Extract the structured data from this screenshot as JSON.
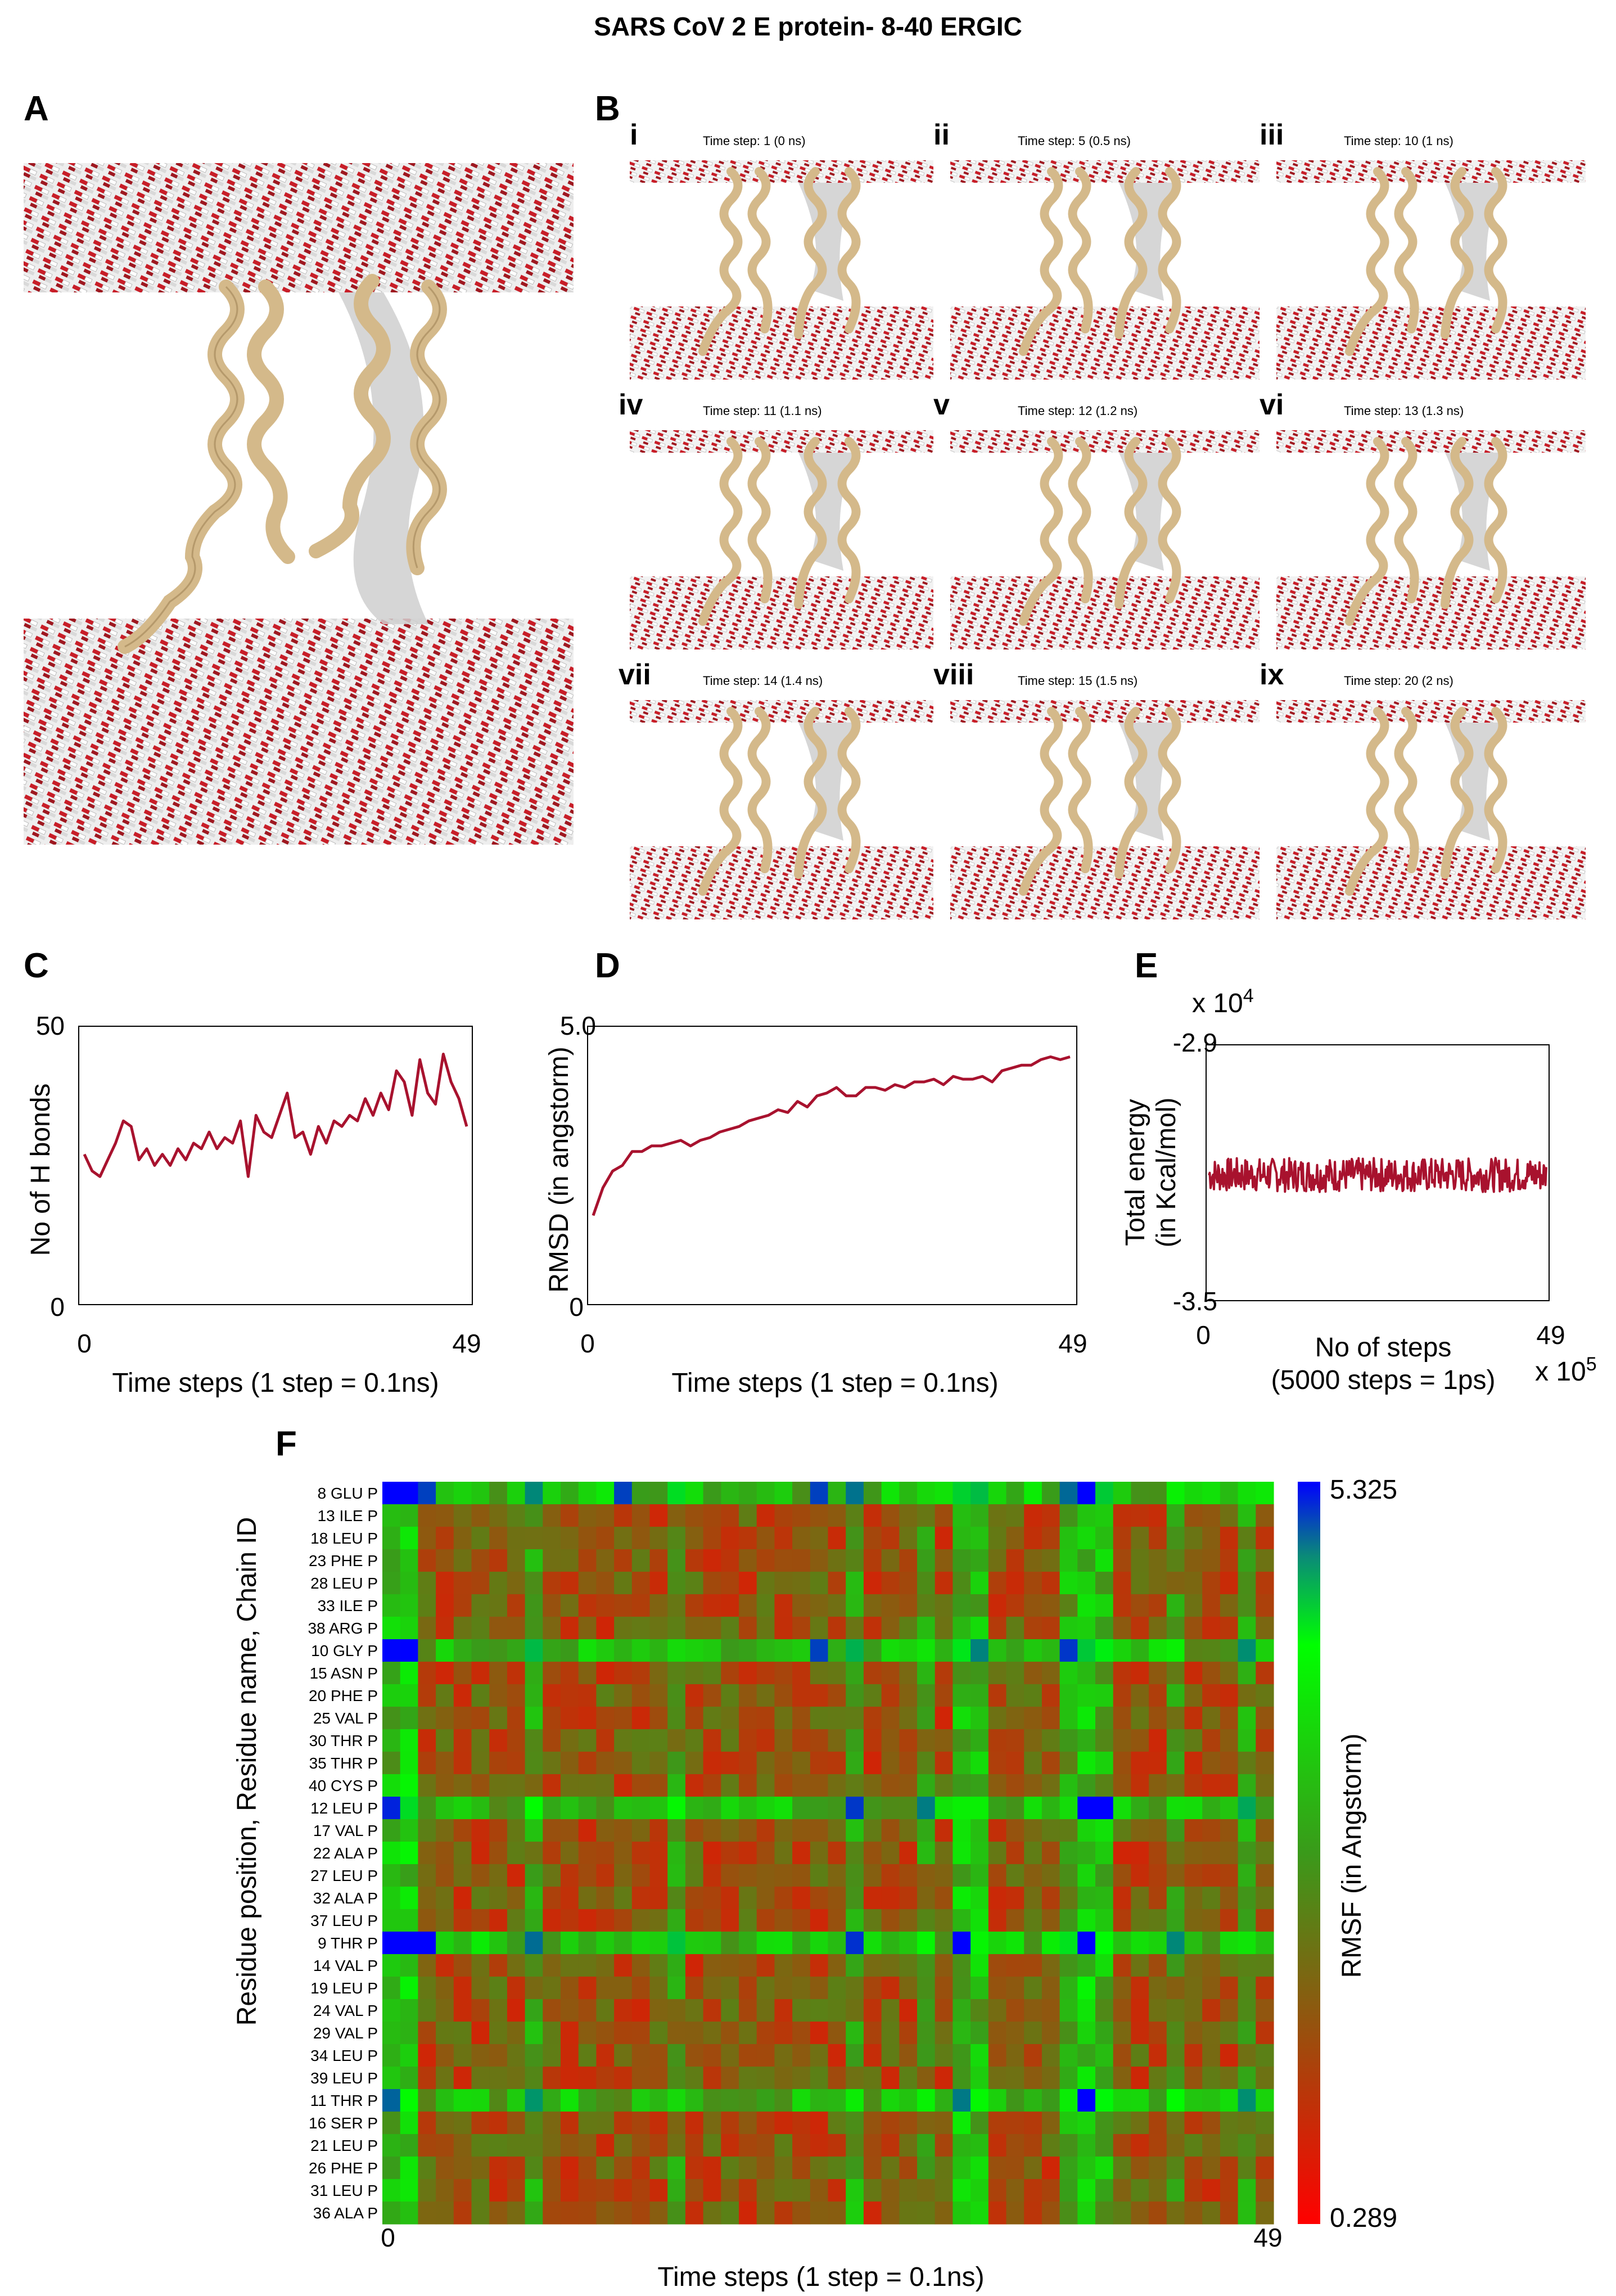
{
  "figure_title": "SARS CoV 2 E protein- 8-40 ERGIC",
  "panel_labels": {
    "A": "A",
    "B": "B",
    "C": "C",
    "D": "D",
    "E": "E",
    "F": "F"
  },
  "snapshots": [
    {
      "roman": "i",
      "caption": "Time step: 1 (0 ns)"
    },
    {
      "roman": "ii",
      "caption": "Time step: 5 (0.5 ns)"
    },
    {
      "roman": "iii",
      "caption": "Time step: 10 (1 ns)"
    },
    {
      "roman": "iv",
      "caption": "Time step: 11 (1.1 ns)"
    },
    {
      "roman": "v",
      "caption": "Time step: 12 (1.2 ns)"
    },
    {
      "roman": "vi",
      "caption": "Time step: 13 (1.3 ns)"
    },
    {
      "roman": "vii",
      "caption": "Time step: 14 (1.4 ns)"
    },
    {
      "roman": "viii",
      "caption": "Time step: 15 (1.5 ns)"
    },
    {
      "roman": "ix",
      "caption": "Time step: 20 (2 ns)"
    }
  ],
  "colors": {
    "line": "#a8122e",
    "water_red": "#c81e28",
    "helix": "#d4b98a",
    "surface": "#c8c8c8"
  },
  "chart_data": [
    {
      "panel": "C",
      "type": "line",
      "xlabel": "Time steps (1 step = 0.1ns)",
      "ylabel": "No of H bonds",
      "xlim": [
        0,
        49
      ],
      "ylim": [
        0,
        50
      ],
      "xticks": [
        "0",
        "49"
      ],
      "yticks": [
        "0",
        "50"
      ],
      "x": [
        0,
        1,
        2,
        3,
        4,
        5,
        6,
        7,
        8,
        9,
        10,
        11,
        12,
        13,
        14,
        15,
        16,
        17,
        18,
        19,
        20,
        21,
        22,
        23,
        24,
        25,
        26,
        27,
        28,
        29,
        30,
        31,
        32,
        33,
        34,
        35,
        36,
        37,
        38,
        39,
        40,
        41,
        42,
        43,
        44,
        45,
        46,
        47,
        48,
        49
      ],
      "values": [
        27,
        24,
        23,
        26,
        29,
        33,
        32,
        26,
        28,
        25,
        27,
        25,
        28,
        26,
        29,
        28,
        31,
        28,
        30,
        29,
        33,
        23,
        34,
        31,
        30,
        34,
        38,
        30,
        31,
        27,
        32,
        29,
        33,
        32,
        34,
        33,
        37,
        34,
        38,
        35,
        42,
        40,
        34,
        44,
        38,
        36,
        45,
        40,
        37,
        32
      ]
    },
    {
      "panel": "D",
      "type": "line",
      "xlabel": "Time steps (1 step = 0.1ns)",
      "ylabel": "RMSD (in angstorm)",
      "xlim": [
        0,
        49
      ],
      "ylim": [
        0,
        5
      ],
      "xticks": [
        "0",
        "49"
      ],
      "yticks": [
        "0",
        "5.0"
      ],
      "x": [
        0,
        1,
        2,
        3,
        4,
        5,
        6,
        7,
        8,
        9,
        10,
        11,
        12,
        13,
        14,
        15,
        16,
        17,
        18,
        19,
        20,
        21,
        22,
        23,
        24,
        25,
        26,
        27,
        28,
        29,
        30,
        31,
        32,
        33,
        34,
        35,
        36,
        37,
        38,
        39,
        40,
        41,
        42,
        43,
        44,
        45,
        46,
        47,
        48,
        49
      ],
      "values": [
        1.6,
        2.1,
        2.4,
        2.5,
        2.75,
        2.75,
        2.85,
        2.85,
        2.9,
        2.95,
        2.85,
        2.95,
        3.0,
        3.1,
        3.15,
        3.2,
        3.3,
        3.35,
        3.4,
        3.5,
        3.45,
        3.65,
        3.55,
        3.75,
        3.8,
        3.9,
        3.75,
        3.75,
        3.9,
        3.9,
        3.85,
        3.95,
        3.9,
        4.0,
        4.0,
        4.05,
        3.95,
        4.1,
        4.05,
        4.05,
        4.1,
        4.0,
        4.2,
        4.25,
        4.3,
        4.3,
        4.4,
        4.45,
        4.4,
        4.45
      ]
    },
    {
      "panel": "E",
      "type": "line",
      "xlabel_lines": [
        "No of steps",
        "(5000 steps = 1ps)"
      ],
      "ylabel_lines": [
        "Total energy",
        "(in Kcal/mol)"
      ],
      "xlim": [
        0,
        49
      ],
      "ylim": [
        -3.5,
        -2.9
      ],
      "xticks": [
        "0",
        "49"
      ],
      "yticks": [
        "-3.5",
        "-2.9"
      ],
      "y_multiplier": {
        "base": "x 10",
        "exp": "4"
      },
      "x_multiplier": {
        "base": "x 10",
        "exp": "5"
      },
      "baseline": -3.205,
      "noise_amplitude": 0.04,
      "n_points": 400
    },
    {
      "panel": "F",
      "type": "heatmap",
      "xlabel": "Time steps (1 step = 0.1ns)",
      "ylabel": "Residue position, Residue name, Chain ID",
      "xticks": [
        "0",
        "49"
      ],
      "colorbar_label": "RMSF (in Angstorm)",
      "colorbar_range": [
        0.289,
        5.325
      ],
      "colorbar_max_label": "5.325",
      "colorbar_min_label": "0.289",
      "n_columns": 50,
      "rows": [
        "8 GLU",
        "13 ILE",
        "18 LEU",
        "23 PHE",
        "28 LEU",
        "33 ILE",
        "38 ARG",
        "10 GLY",
        "15 ASN",
        "20 PHE",
        "25 VAL",
        "30 THR",
        "35 THR",
        "40 CYS",
        "12 LEU",
        "17 VAL",
        "22 ALA",
        "27 LEU",
        "32 ALA",
        "37 LEU",
        "9 THR",
        "14 VAL",
        "19 LEU",
        "24 VAL",
        "29 VAL",
        "34 LEU",
        "39 LEU",
        "11 THR",
        "16 SER",
        "21 LEU",
        "26 PHE",
        "31 LEU",
        "36 ALA"
      ],
      "chain_id": "P"
    }
  ]
}
